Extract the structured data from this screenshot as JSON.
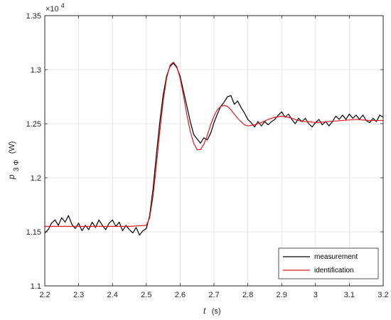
{
  "chart_data": {
    "type": "line",
    "xlabel_var": "t",
    "xlabel_unit": "(s)",
    "ylabel_var": "p",
    "ylabel_sub": "3 Φ",
    "ylabel_unit": "(W)",
    "exponent_label": "×10",
    "exponent_power": "4",
    "xlim": [
      2.2,
      3.2
    ],
    "ylim": [
      1.1,
      1.35
    ],
    "y_scale_note": "values shown ×10^4",
    "x_ticks": [
      "2.2",
      "2.3",
      "2.4",
      "2.5",
      "2.6",
      "2.7",
      "2.8",
      "2.9",
      "3",
      "3.1",
      "3.2"
    ],
    "y_ticks": [
      "1.1",
      "1.15",
      "1.2",
      "1.25",
      "1.3",
      "1.35"
    ],
    "x_tick_values": [
      2.2,
      2.3,
      2.4,
      2.5,
      2.6,
      2.7,
      2.8,
      2.9,
      3.0,
      3.1,
      3.2
    ],
    "y_tick_values": [
      1.1,
      1.15,
      1.2,
      1.25,
      1.3,
      1.35
    ],
    "grid": true,
    "legend_position": "bottom-right",
    "series": [
      {
        "name": "measurement",
        "color": "#000000",
        "x": [
          2.2,
          2.21,
          2.22,
          2.23,
          2.24,
          2.25,
          2.26,
          2.27,
          2.28,
          2.29,
          2.3,
          2.31,
          2.32,
          2.33,
          2.34,
          2.35,
          2.36,
          2.37,
          2.38,
          2.39,
          2.4,
          2.41,
          2.42,
          2.43,
          2.44,
          2.45,
          2.46,
          2.47,
          2.48,
          2.49,
          2.5,
          2.51,
          2.52,
          2.53,
          2.54,
          2.55,
          2.56,
          2.57,
          2.58,
          2.59,
          2.6,
          2.61,
          2.62,
          2.63,
          2.64,
          2.65,
          2.66,
          2.67,
          2.68,
          2.69,
          2.7,
          2.71,
          2.72,
          2.73,
          2.74,
          2.75,
          2.76,
          2.77,
          2.78,
          2.79,
          2.8,
          2.81,
          2.82,
          2.83,
          2.84,
          2.85,
          2.86,
          2.87,
          2.88,
          2.89,
          2.9,
          2.91,
          2.92,
          2.93,
          2.94,
          2.95,
          2.96,
          2.97,
          2.98,
          2.99,
          3.0,
          3.01,
          3.02,
          3.03,
          3.04,
          3.05,
          3.06,
          3.07,
          3.08,
          3.09,
          3.1,
          3.11,
          3.12,
          3.13,
          3.14,
          3.15,
          3.16,
          3.17,
          3.18,
          3.19,
          3.2
        ],
        "y": [
          1.149,
          1.152,
          1.158,
          1.161,
          1.156,
          1.163,
          1.159,
          1.165,
          1.157,
          1.153,
          1.158,
          1.151,
          1.156,
          1.152,
          1.159,
          1.154,
          1.161,
          1.156,
          1.152,
          1.158,
          1.161,
          1.155,
          1.159,
          1.151,
          1.156,
          1.152,
          1.149,
          1.154,
          1.147,
          1.151,
          1.153,
          1.165,
          1.19,
          1.222,
          1.252,
          1.277,
          1.294,
          1.303,
          1.306,
          1.302,
          1.294,
          1.28,
          1.266,
          1.252,
          1.24,
          1.236,
          1.232,
          1.237,
          1.235,
          1.241,
          1.251,
          1.259,
          1.266,
          1.27,
          1.275,
          1.276,
          1.268,
          1.271,
          1.265,
          1.26,
          1.254,
          1.251,
          1.247,
          1.252,
          1.248,
          1.252,
          1.249,
          1.252,
          1.254,
          1.258,
          1.261,
          1.256,
          1.259,
          1.254,
          1.25,
          1.255,
          1.252,
          1.255,
          1.25,
          1.247,
          1.251,
          1.254,
          1.249,
          1.252,
          1.248,
          1.252,
          1.257,
          1.254,
          1.258,
          1.254,
          1.259,
          1.255,
          1.258,
          1.254,
          1.258,
          1.253,
          1.251,
          1.255,
          1.252,
          1.258,
          1.256
        ]
      },
      {
        "name": "identification",
        "color": "#e8141c",
        "x": [
          2.2,
          2.3,
          2.4,
          2.45,
          2.5,
          2.51,
          2.52,
          2.53,
          2.54,
          2.55,
          2.56,
          2.57,
          2.58,
          2.59,
          2.6,
          2.61,
          2.62,
          2.63,
          2.64,
          2.65,
          2.66,
          2.67,
          2.68,
          2.69,
          2.7,
          2.71,
          2.72,
          2.73,
          2.74,
          2.75,
          2.76,
          2.77,
          2.78,
          2.79,
          2.8,
          2.82,
          2.84,
          2.86,
          2.88,
          2.9,
          2.92,
          2.94,
          2.96,
          2.98,
          3.0,
          3.04,
          3.08,
          3.12,
          3.16,
          3.2
        ],
        "y": [
          1.155,
          1.155,
          1.155,
          1.155,
          1.156,
          1.163,
          1.183,
          1.212,
          1.243,
          1.271,
          1.292,
          1.304,
          1.307,
          1.303,
          1.292,
          1.276,
          1.258,
          1.243,
          1.232,
          1.226,
          1.226,
          1.231,
          1.239,
          1.249,
          1.257,
          1.263,
          1.266,
          1.267,
          1.266,
          1.263,
          1.259,
          1.255,
          1.252,
          1.249,
          1.248,
          1.249,
          1.251,
          1.254,
          1.256,
          1.257,
          1.256,
          1.254,
          1.252,
          1.252,
          1.251,
          1.252,
          1.253,
          1.254,
          1.253,
          1.253
        ]
      }
    ]
  }
}
